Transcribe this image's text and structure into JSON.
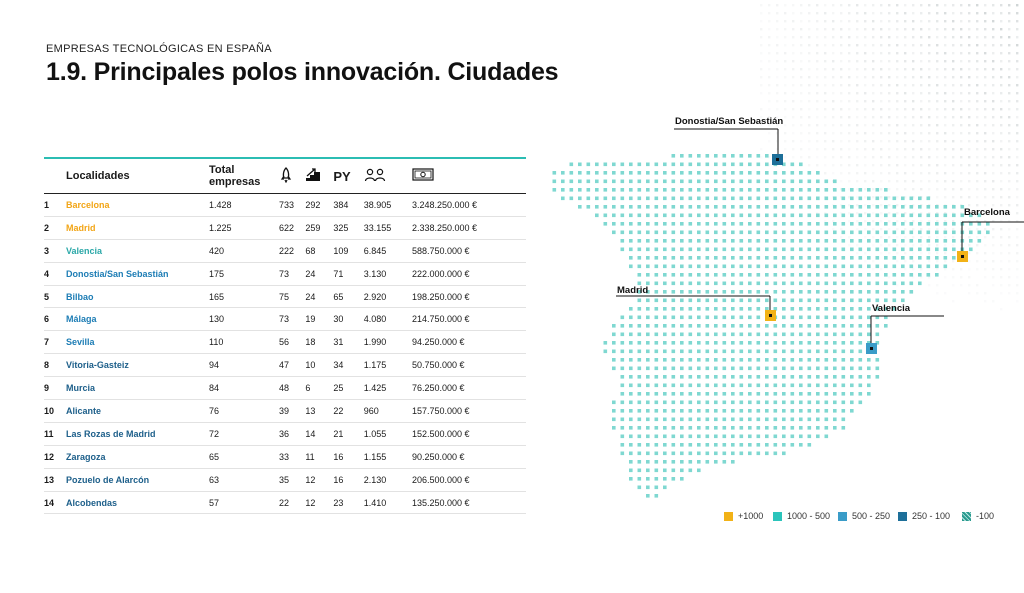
{
  "header": {
    "kicker": "EMPRESAS TECNOLÓGICAS EN ESPAÑA",
    "title": "1.9. Principales polos innovación. Ciudades"
  },
  "table": {
    "headers": {
      "localidades": "Localidades",
      "total_line1": "Total",
      "total_line2": "empresas",
      "py": "PY",
      "col_icons": [
        "rocket-icon",
        "growth-stairs-icon",
        "people-icon",
        "banknote-icon"
      ]
    },
    "rows": [
      {
        "rank": "1",
        "city": "Barcelona",
        "total": "1.428",
        "c1": "733",
        "c2": "292",
        "c3": "384",
        "c4": "38.905",
        "c5": "3.248.250.000 €",
        "tier": "orange"
      },
      {
        "rank": "2",
        "city": "Madrid",
        "total": "1.225",
        "c1": "622",
        "c2": "259",
        "c3": "325",
        "c4": "33.155",
        "c5": "2.338.250.000 €",
        "tier": "orange"
      },
      {
        "rank": "3",
        "city": "Valencia",
        "total": "420",
        "c1": "222",
        "c2": "68",
        "c3": "109",
        "c4": "6.845",
        "c5": "588.750.000 €",
        "tier": "teal"
      },
      {
        "rank": "4",
        "city": "Donostia/San Sebastián",
        "total": "175",
        "c1": "73",
        "c2": "24",
        "c3": "71",
        "c4": "3.130",
        "c5": "222.000.000 €",
        "tier": "blue"
      },
      {
        "rank": "5",
        "city": "Bilbao",
        "total": "165",
        "c1": "75",
        "c2": "24",
        "c3": "65",
        "c4": "2.920",
        "c5": "198.250.000 €",
        "tier": "blue"
      },
      {
        "rank": "6",
        "city": "Málaga",
        "total": "130",
        "c1": "73",
        "c2": "19",
        "c3": "30",
        "c4": "4.080",
        "c5": "214.750.000 €",
        "tier": "blue"
      },
      {
        "rank": "7",
        "city": "Sevilla",
        "total": "110",
        "c1": "56",
        "c2": "18",
        "c3": "31",
        "c4": "1.990",
        "c5": "94.250.000 €",
        "tier": "blue"
      },
      {
        "rank": "8",
        "city": "Vitoria-Gasteiz",
        "total": "94",
        "c1": "47",
        "c2": "10",
        "c3": "34",
        "c4": "1.175",
        "c5": "50.750.000 €",
        "tier": "dark"
      },
      {
        "rank": "9",
        "city": "Murcia",
        "total": "84",
        "c1": "48",
        "c2": "6",
        "c3": "25",
        "c4": "1.425",
        "c5": "76.250.000 €",
        "tier": "dark"
      },
      {
        "rank": "10",
        "city": "Alicante",
        "total": "76",
        "c1": "39",
        "c2": "13",
        "c3": "22",
        "c4": "960",
        "c5": "157.750.000 €",
        "tier": "dark"
      },
      {
        "rank": "11",
        "city": "Las Rozas de Madrid",
        "total": "72",
        "c1": "36",
        "c2": "14",
        "c3": "21",
        "c4": "1.055",
        "c5": "152.500.000 €",
        "tier": "dark"
      },
      {
        "rank": "12",
        "city": "Zaragoza",
        "total": "65",
        "c1": "33",
        "c2": "11",
        "c3": "16",
        "c4": "1.155",
        "c5": "90.250.000 €",
        "tier": "dark"
      },
      {
        "rank": "13",
        "city": "Pozuelo de Alarcón",
        "total": "63",
        "c1": "35",
        "c2": "12",
        "c3": "16",
        "c4": "2.130",
        "c5": "206.500.000 €",
        "tier": "dark"
      },
      {
        "rank": "14",
        "city": "Alcobendas",
        "total": "57",
        "c1": "22",
        "c2": "12",
        "c3": "23",
        "c4": "1.410",
        "c5": "135.250.000 €",
        "tier": "dark"
      }
    ]
  },
  "map": {
    "labels": {
      "donostia": "Donostia/San Sebastián",
      "barcelona": "Barcelona",
      "madrid": "Madrid",
      "valencia": "Valencia"
    }
  },
  "legend": [
    {
      "label": "+1000",
      "color": "#f2b217"
    },
    {
      "label": "1000 - 500",
      "color": "#2bc4bb"
    },
    {
      "label": "500 - 250",
      "color": "#3a9cc8"
    },
    {
      "label": "250 - 100",
      "color": "#1d6f99"
    },
    {
      "label": "-100",
      "color": "#2a9a8e"
    }
  ],
  "colors": {
    "accent_teal": "#2bbdb3",
    "map_dots": "#7fd8d1",
    "orange": "#f2a516"
  }
}
